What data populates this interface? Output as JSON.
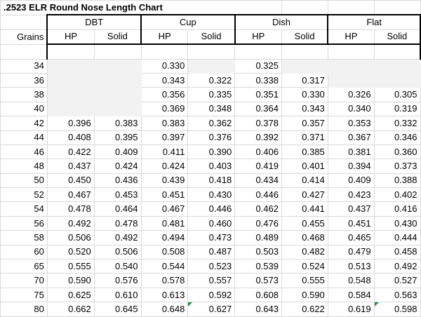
{
  "title": ".2523 ELR Round Nose Length Chart",
  "header": {
    "grains_label": "Grains",
    "groups": [
      "DBT",
      "Cup",
      "Dish",
      "Flat"
    ],
    "sub": [
      "HP",
      "Solid",
      "HP",
      "Solid",
      "HP",
      "Solid",
      "HP",
      "Solid"
    ]
  },
  "rows": [
    {
      "grains": "34",
      "cells": [
        "",
        "",
        "0.330",
        "",
        "0.325",
        "",
        "",
        ""
      ]
    },
    {
      "grains": "36",
      "cells": [
        "",
        "",
        "0.343",
        "0.322",
        "0.338",
        "0.317",
        "",
        ""
      ]
    },
    {
      "grains": "38",
      "cells": [
        "",
        "",
        "0.356",
        "0.335",
        "0.351",
        "0.330",
        "0.326",
        "0.305"
      ]
    },
    {
      "grains": "40",
      "cells": [
        "",
        "",
        "0.369",
        "0.348",
        "0.364",
        "0.343",
        "0.340",
        "0.319"
      ]
    },
    {
      "grains": "42",
      "cells": [
        "0.396",
        "0.383",
        "0.383",
        "0.362",
        "0.378",
        "0.357",
        "0.353",
        "0.332"
      ]
    },
    {
      "grains": "44",
      "cells": [
        "0.408",
        "0.395",
        "0.397",
        "0.376",
        "0.392",
        "0.371",
        "0.367",
        "0.346"
      ]
    },
    {
      "grains": "46",
      "cells": [
        "0.422",
        "0.409",
        "0.411",
        "0.390",
        "0.406",
        "0.385",
        "0.381",
        "0.360"
      ]
    },
    {
      "grains": "48",
      "cells": [
        "0.437",
        "0.424",
        "0.424",
        "0.403",
        "0.419",
        "0.401",
        "0.394",
        "0.373"
      ]
    },
    {
      "grains": "50",
      "cells": [
        "0.450",
        "0.436",
        "0.439",
        "0.418",
        "0.434",
        "0.414",
        "0.409",
        "0.388"
      ]
    },
    {
      "grains": "52",
      "cells": [
        "0.467",
        "0.453",
        "0.451",
        "0.430",
        "0.446",
        "0.427",
        "0.423",
        "0.402"
      ]
    },
    {
      "grains": "54",
      "cells": [
        "0.478",
        "0.464",
        "0.467",
        "0.446",
        "0.462",
        "0.441",
        "0.437",
        "0.416"
      ]
    },
    {
      "grains": "56",
      "cells": [
        "0.492",
        "0.478",
        "0.481",
        "0.460",
        "0.476",
        "0.455",
        "0.451",
        "0.430"
      ]
    },
    {
      "grains": "58",
      "cells": [
        "0.506",
        "0.492",
        "0.494",
        "0.473",
        "0.489",
        "0.468",
        "0.465",
        "0.444"
      ]
    },
    {
      "grains": "60",
      "cells": [
        "0.520",
        "0.506",
        "0.508",
        "0.487",
        "0.503",
        "0.482",
        "0.479",
        "0.458"
      ]
    },
    {
      "grains": "65",
      "cells": [
        "0.555",
        "0.540",
        "0.544",
        "0.523",
        "0.539",
        "0.524",
        "0.513",
        "0.492"
      ]
    },
    {
      "grains": "70",
      "cells": [
        "0.590",
        "0.576",
        "0.578",
        "0.557",
        "0.573",
        "0.555",
        "0.548",
        "0.527"
      ]
    },
    {
      "grains": "75",
      "cells": [
        "0.625",
        "0.610",
        "0.613",
        "0.592",
        "0.608",
        "0.590",
        "0.584",
        "0.563"
      ]
    },
    {
      "grains": "80",
      "cells": [
        "0.662",
        "0.645",
        "0.648",
        "0.627",
        "0.643",
        "0.622",
        "0.619",
        "0.598"
      ]
    }
  ],
  "grey_cells": [
    [
      0,
      0
    ],
    [
      0,
      1
    ],
    [
      0,
      3
    ],
    [
      0,
      5
    ],
    [
      0,
      6
    ],
    [
      0,
      7
    ],
    [
      1,
      0
    ],
    [
      1,
      1
    ],
    [
      1,
      6
    ],
    [
      1,
      7
    ],
    [
      2,
      0
    ],
    [
      2,
      1
    ],
    [
      3,
      0
    ],
    [
      3,
      1
    ]
  ],
  "flag_cells": [
    [
      17,
      3
    ],
    [
      17,
      7
    ]
  ],
  "colors": {
    "grid": "#dadada",
    "grey_fill": "#f2f2f2",
    "flag": "#1e8f3a"
  }
}
